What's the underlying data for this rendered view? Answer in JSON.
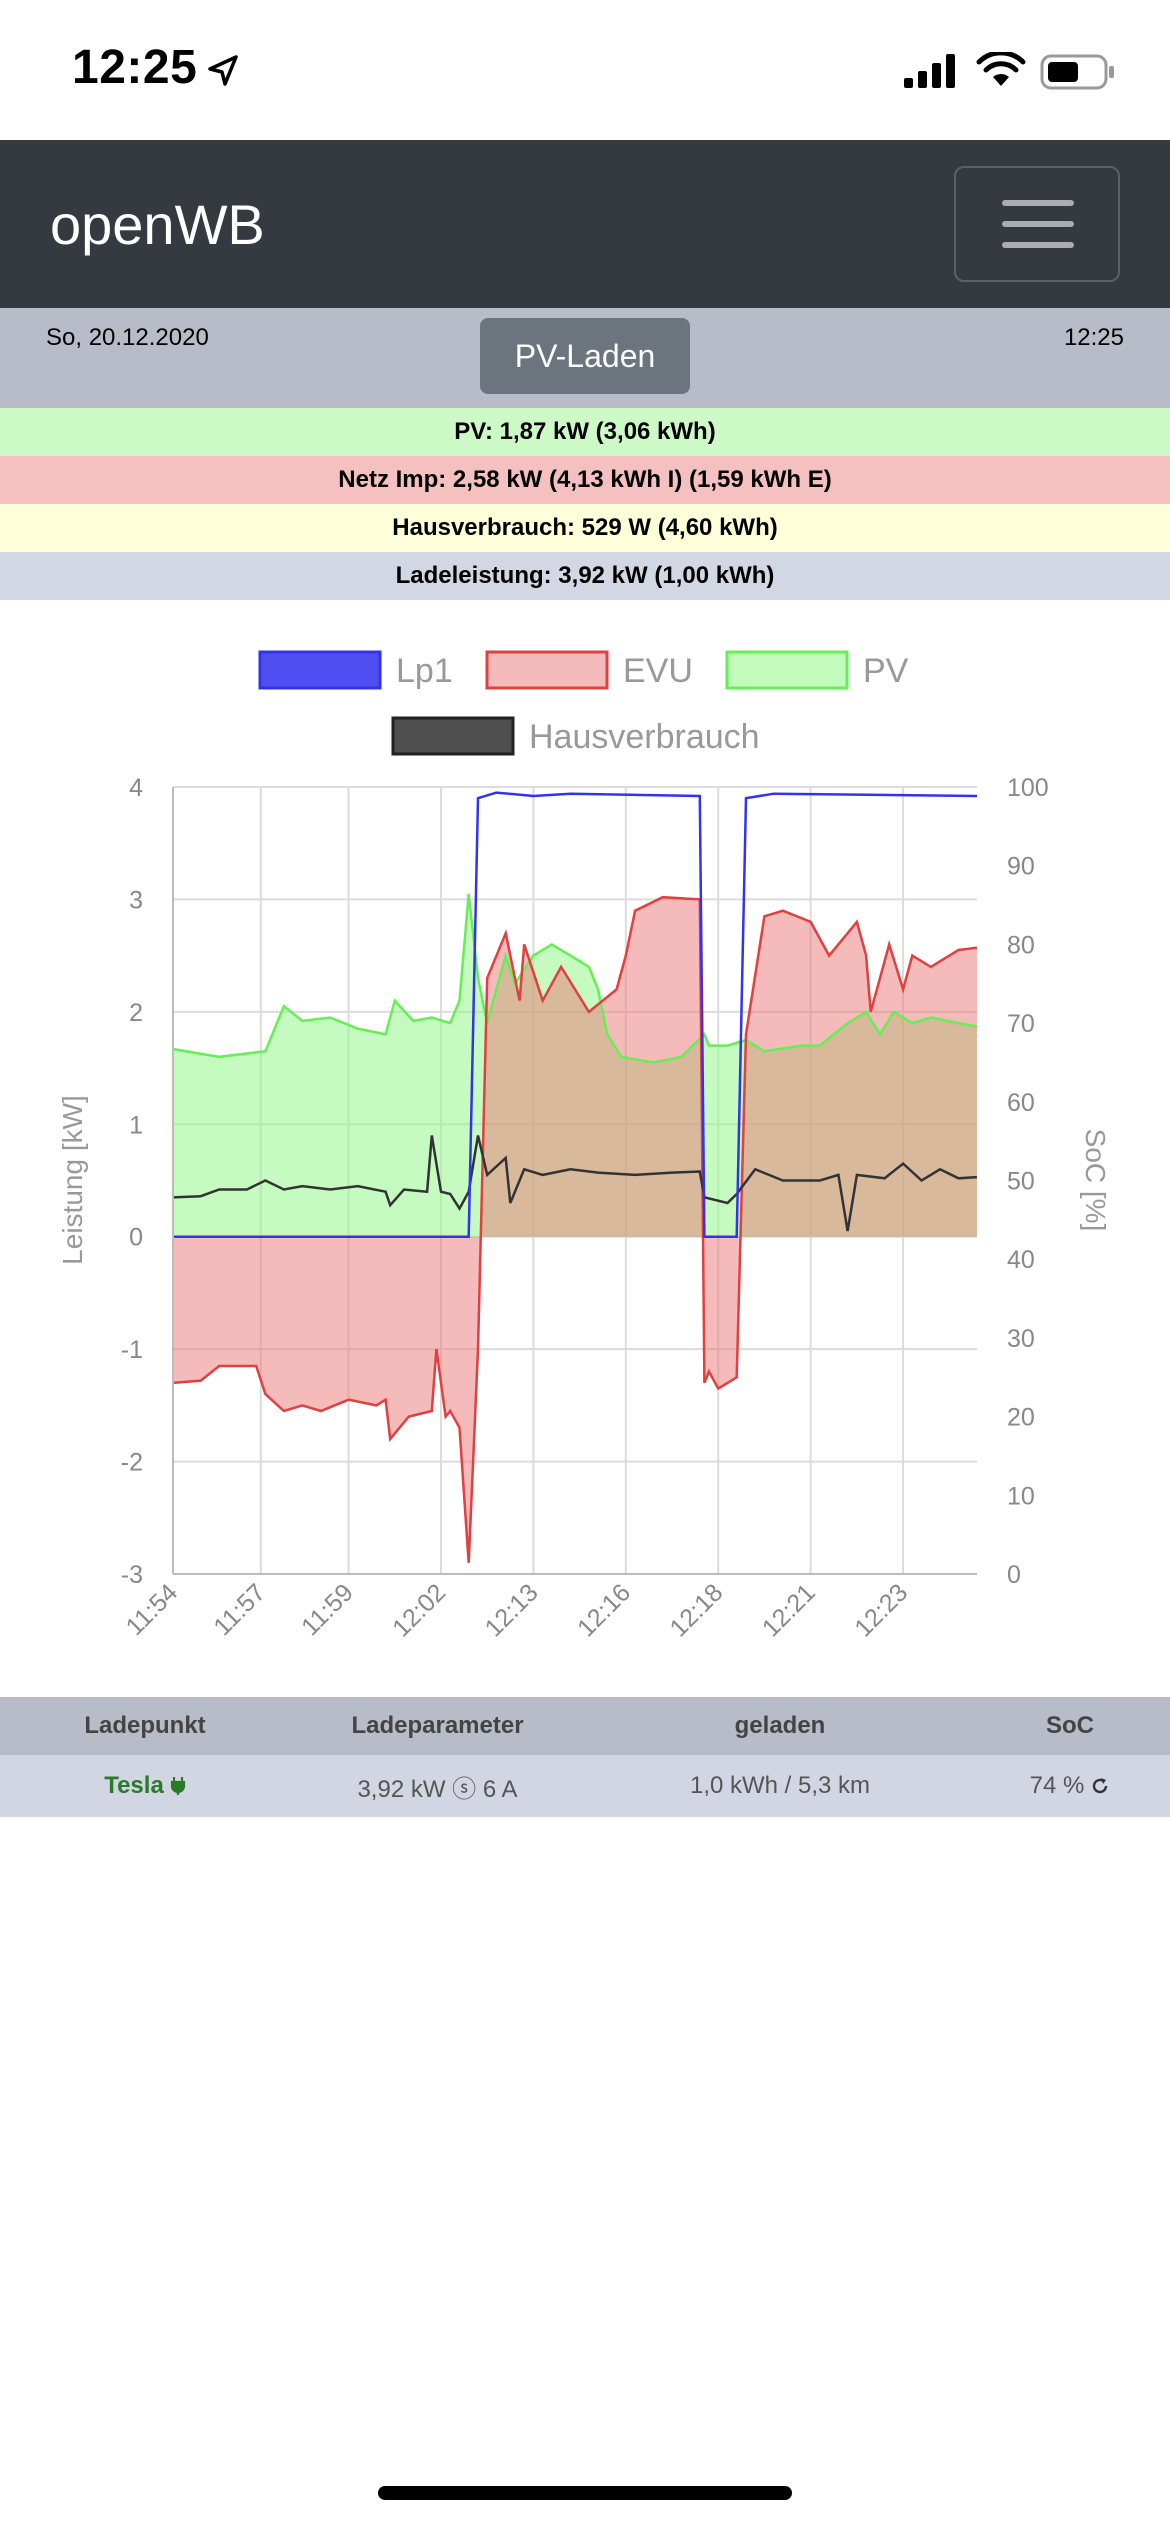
{
  "status_bar": {
    "time": "12:25",
    "icons": [
      "location-arrow-icon",
      "cellular-signal-icon",
      "wifi-icon",
      "battery-icon"
    ]
  },
  "navbar": {
    "brand": "openWB",
    "menu_icon": "hamburger-menu-icon"
  },
  "header": {
    "date": "So, 20.12.2020",
    "time": "12:25",
    "mode_button": "PV-Laden"
  },
  "summary": {
    "pv": "PV: 1,87 kW (3,06 kWh)",
    "grid": "Netz Imp: 2,58 kW (4,13 kWh I) (1,59 kWh E)",
    "house": "Hausverbrauch: 529 W (4,60 kWh)",
    "charge": "Ladeleistung: 3,92 kW (1,00 kWh)"
  },
  "colors": {
    "pv_bg": "#cdf9c6",
    "grid_bg": "#f4c0c0",
    "house_bg": "#fefed8",
    "charge_bg": "#d3d7e3",
    "lp1": "#3333ee",
    "evu": "#e04040",
    "pv": "#66ee55",
    "house": "#333333"
  },
  "chart_data": {
    "type": "area",
    "legend": [
      "Lp1",
      "EVU",
      "PV",
      "Hausverbrauch"
    ],
    "legend_placement": "top",
    "ylabel": "Leistung [kW]",
    "y2label": "SoC [%]",
    "ylim": [
      -3,
      4
    ],
    "y2lim": [
      0,
      100
    ],
    "y_ticks": [
      "4",
      "3",
      "2",
      "1",
      "0",
      "-1",
      "-2",
      "-3"
    ],
    "y2_ticks": [
      "100",
      "90",
      "80",
      "70",
      "60",
      "50",
      "40",
      "30",
      "20",
      "10",
      "0"
    ],
    "x_ticks": [
      "11:54",
      "11:57",
      "11:59",
      "12:02",
      "12:13",
      "12:16",
      "12:18",
      "12:21",
      "12:23"
    ],
    "grid": true,
    "series": [
      {
        "name": "Lp1",
        "values": [
          [
            0,
            0
          ],
          [
            3.2,
            0
          ],
          [
            3.3,
            3.9
          ],
          [
            3.5,
            3.95
          ],
          [
            3.9,
            3.92
          ],
          [
            4.3,
            3.94
          ],
          [
            5.7,
            3.92
          ],
          [
            5.75,
            0
          ],
          [
            6.1,
            0
          ],
          [
            6.2,
            3.9
          ],
          [
            6.5,
            3.94
          ],
          [
            8.7,
            3.92
          ]
        ]
      },
      {
        "name": "EVU",
        "values": [
          [
            0,
            -1.3
          ],
          [
            0.3,
            -1.28
          ],
          [
            0.5,
            -1.15
          ],
          [
            0.9,
            -1.15
          ],
          [
            1.0,
            -1.4
          ],
          [
            1.2,
            -1.55
          ],
          [
            1.4,
            -1.5
          ],
          [
            1.6,
            -1.55
          ],
          [
            1.9,
            -1.45
          ],
          [
            2.2,
            -1.5
          ],
          [
            2.3,
            -1.45
          ],
          [
            2.35,
            -1.8
          ],
          [
            2.55,
            -1.6
          ],
          [
            2.8,
            -1.55
          ],
          [
            2.85,
            -1.0
          ],
          [
            2.95,
            -1.6
          ],
          [
            3.0,
            -1.55
          ],
          [
            3.1,
            -1.7
          ],
          [
            3.2,
            -2.9
          ],
          [
            3.3,
            -1.0
          ],
          [
            3.4,
            2.3
          ],
          [
            3.6,
            2.7
          ],
          [
            3.75,
            2.1
          ],
          [
            3.8,
            2.6
          ],
          [
            4.0,
            2.1
          ],
          [
            4.2,
            2.4
          ],
          [
            4.5,
            2.0
          ],
          [
            4.8,
            2.2
          ],
          [
            4.9,
            2.5
          ],
          [
            5.0,
            2.9
          ],
          [
            5.3,
            3.02
          ],
          [
            5.7,
            3.0
          ],
          [
            5.75,
            -1.3
          ],
          [
            5.8,
            -1.2
          ],
          [
            5.9,
            -1.35
          ],
          [
            6.0,
            -1.3
          ],
          [
            6.1,
            -1.25
          ],
          [
            6.2,
            1.8
          ],
          [
            6.4,
            2.85
          ],
          [
            6.6,
            2.9
          ],
          [
            6.9,
            2.8
          ],
          [
            7.1,
            2.5
          ],
          [
            7.3,
            2.7
          ],
          [
            7.4,
            2.8
          ],
          [
            7.5,
            2.5
          ],
          [
            7.55,
            2.0
          ],
          [
            7.65,
            2.3
          ],
          [
            7.75,
            2.6
          ],
          [
            7.9,
            2.2
          ],
          [
            8.0,
            2.5
          ],
          [
            8.2,
            2.4
          ],
          [
            8.5,
            2.55
          ],
          [
            8.7,
            2.57
          ]
        ]
      },
      {
        "name": "PV",
        "values": [
          [
            0,
            1.67
          ],
          [
            0.5,
            1.6
          ],
          [
            1.0,
            1.65
          ],
          [
            1.2,
            2.05
          ],
          [
            1.4,
            1.92
          ],
          [
            1.7,
            1.95
          ],
          [
            2.0,
            1.85
          ],
          [
            2.3,
            1.8
          ],
          [
            2.4,
            2.1
          ],
          [
            2.6,
            1.92
          ],
          [
            2.8,
            1.95
          ],
          [
            3.0,
            1.9
          ],
          [
            3.1,
            2.1
          ],
          [
            3.2,
            3.05
          ],
          [
            3.3,
            2.3
          ],
          [
            3.4,
            1.9
          ],
          [
            3.6,
            2.5
          ],
          [
            3.7,
            2.25
          ],
          [
            3.9,
            2.5
          ],
          [
            4.1,
            2.6
          ],
          [
            4.3,
            2.5
          ],
          [
            4.5,
            2.4
          ],
          [
            4.6,
            2.2
          ],
          [
            4.7,
            1.8
          ],
          [
            4.85,
            1.6
          ],
          [
            5.2,
            1.55
          ],
          [
            5.5,
            1.6
          ],
          [
            5.75,
            1.8
          ],
          [
            5.8,
            1.7
          ],
          [
            5.9,
            1.7
          ],
          [
            6.0,
            1.7
          ],
          [
            6.2,
            1.75
          ],
          [
            6.4,
            1.65
          ],
          [
            6.8,
            1.7
          ],
          [
            7.0,
            1.7
          ],
          [
            7.3,
            1.9
          ],
          [
            7.5,
            2.0
          ],
          [
            7.65,
            1.8
          ],
          [
            7.8,
            2.0
          ],
          [
            8.0,
            1.9
          ],
          [
            8.2,
            1.95
          ],
          [
            8.5,
            1.9
          ],
          [
            8.7,
            1.87
          ]
        ]
      },
      {
        "name": "Hausverbrauch",
        "values": [
          [
            0,
            0.35
          ],
          [
            0.3,
            0.36
          ],
          [
            0.5,
            0.42
          ],
          [
            0.8,
            0.42
          ],
          [
            1.0,
            0.5
          ],
          [
            1.2,
            0.42
          ],
          [
            1.4,
            0.45
          ],
          [
            1.7,
            0.42
          ],
          [
            2.0,
            0.45
          ],
          [
            2.3,
            0.4
          ],
          [
            2.35,
            0.28
          ],
          [
            2.5,
            0.42
          ],
          [
            2.75,
            0.4
          ],
          [
            2.8,
            0.9
          ],
          [
            2.9,
            0.4
          ],
          [
            3.0,
            0.38
          ],
          [
            3.1,
            0.25
          ],
          [
            3.2,
            0.4
          ],
          [
            3.3,
            0.9
          ],
          [
            3.4,
            0.55
          ],
          [
            3.6,
            0.7
          ],
          [
            3.65,
            0.3
          ],
          [
            3.8,
            0.6
          ],
          [
            4.0,
            0.55
          ],
          [
            4.3,
            0.6
          ],
          [
            4.6,
            0.57
          ],
          [
            5.0,
            0.55
          ],
          [
            5.4,
            0.57
          ],
          [
            5.7,
            0.58
          ],
          [
            5.75,
            0.35
          ],
          [
            6.0,
            0.3
          ],
          [
            6.1,
            0.38
          ],
          [
            6.3,
            0.6
          ],
          [
            6.6,
            0.5
          ],
          [
            7.0,
            0.5
          ],
          [
            7.2,
            0.55
          ],
          [
            7.3,
            0.05
          ],
          [
            7.4,
            0.55
          ],
          [
            7.7,
            0.52
          ],
          [
            7.9,
            0.65
          ],
          [
            8.1,
            0.5
          ],
          [
            8.3,
            0.6
          ],
          [
            8.5,
            0.52
          ],
          [
            8.7,
            0.53
          ]
        ]
      }
    ]
  },
  "table": {
    "headers": [
      "Ladepunkt",
      "Ladeparameter",
      "geladen",
      "SoC"
    ],
    "rows": [
      {
        "name": "Tesla",
        "params": "3,92 kW ⓢ 6 A",
        "charged": "1,0 kWh / 5,3 km",
        "soc": "74 %"
      }
    ]
  }
}
